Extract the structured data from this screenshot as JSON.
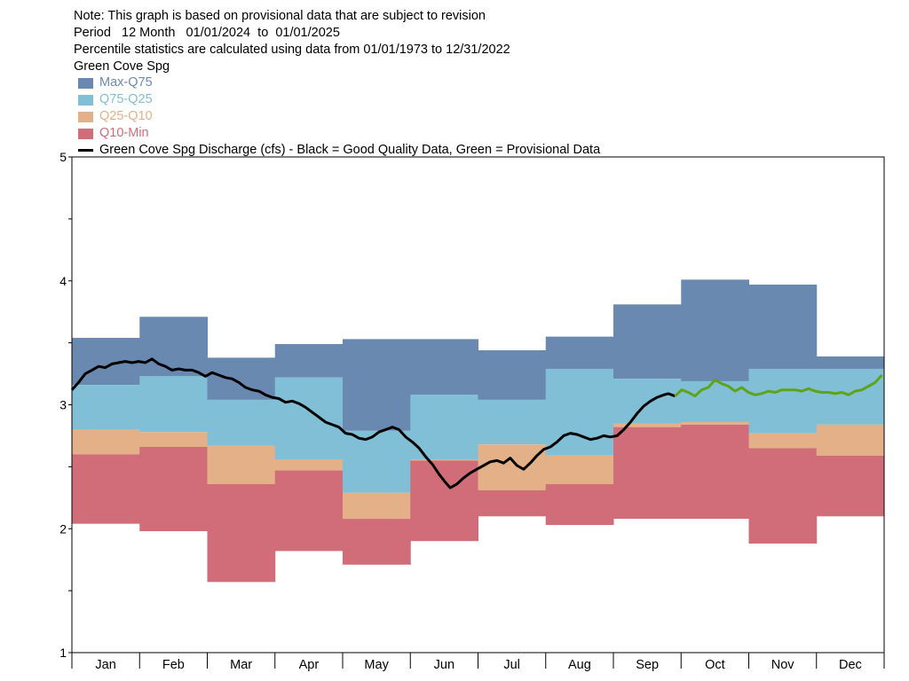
{
  "header": {
    "note": "Note: This graph is based on provisional data that are subject to revision",
    "period": "Period   12 Month   01/01/2024  to  01/01/2025",
    "percentile_note": "Percentile statistics are calculated using data from 01/01/1973 to 12/31/2022",
    "station": "Green Cove Spg"
  },
  "legend": [
    {
      "label": "Max-Q75",
      "color": "#6a89b0",
      "text_color": "#6a89b0"
    },
    {
      "label": "Q75-Q25",
      "color": "#80bfd6",
      "text_color": "#80bfd6"
    },
    {
      "label": "Q25-Q10",
      "color": "#e3b088",
      "text_color": "#e3b088"
    },
    {
      "label": "Q10-Min",
      "color": "#d06d78",
      "text_color": "#d06d78"
    }
  ],
  "legend_line_label": "Green Cove Spg Discharge (cfs) - Black = Good Quality Data, Green = Provisional Data",
  "chart_data": {
    "type": "area",
    "y_ticks": [
      "1",
      "2",
      "3",
      "4",
      "5"
    ],
    "ylim": [
      1,
      5
    ],
    "months": [
      "Jan",
      "Feb",
      "Mar",
      "Apr",
      "May",
      "Jun",
      "Jul",
      "Aug",
      "Sep",
      "Oct",
      "Nov",
      "Dec"
    ],
    "percentile_bands": {
      "max": [
        3.54,
        3.71,
        3.38,
        3.49,
        3.53,
        3.53,
        3.44,
        3.55,
        3.81,
        4.01,
        3.97,
        3.39
      ],
      "q75": [
        3.16,
        3.23,
        3.04,
        3.22,
        2.79,
        3.08,
        3.04,
        3.29,
        3.21,
        3.19,
        3.29,
        3.29
      ],
      "q25": [
        2.8,
        2.78,
        2.67,
        2.56,
        2.29,
        2.56,
        2.68,
        2.59,
        2.85,
        2.86,
        2.77,
        2.84
      ],
      "q10": [
        2.6,
        2.66,
        2.36,
        2.47,
        2.08,
        2.55,
        2.31,
        2.36,
        2.82,
        2.84,
        2.65,
        2.59
      ],
      "min": [
        2.04,
        1.98,
        1.57,
        1.82,
        1.71,
        1.9,
        2.1,
        2.03,
        2.08,
        2.08,
        1.88,
        2.1
      ]
    },
    "band_colors": {
      "max_q75": "#6a89b0",
      "q75_q25": "#80bfd6",
      "q25_q10": "#e3b088",
      "q10_min": "#d06d78"
    },
    "series": [
      {
        "color": "#000000",
        "points": [
          [
            0,
            3.12
          ],
          [
            3,
            3.18
          ],
          [
            6,
            3.25
          ],
          [
            9,
            3.28
          ],
          [
            12,
            3.31
          ],
          [
            15,
            3.3
          ],
          [
            18,
            3.33
          ],
          [
            21,
            3.34
          ],
          [
            24,
            3.35
          ],
          [
            27,
            3.34
          ],
          [
            30,
            3.35
          ],
          [
            33,
            3.34
          ],
          [
            36,
            3.37
          ],
          [
            39,
            3.33
          ],
          [
            42,
            3.31
          ],
          [
            45,
            3.28
          ],
          [
            48,
            3.29
          ],
          [
            51,
            3.28
          ],
          [
            54,
            3.28
          ],
          [
            57,
            3.26
          ],
          [
            60,
            3.23
          ],
          [
            63,
            3.26
          ],
          [
            66,
            3.24
          ],
          [
            69,
            3.22
          ],
          [
            72,
            3.21
          ],
          [
            75,
            3.18
          ],
          [
            78,
            3.14
          ],
          [
            81,
            3.12
          ],
          [
            84,
            3.11
          ],
          [
            87,
            3.08
          ],
          [
            90,
            3.06
          ],
          [
            93,
            3.05
          ],
          [
            96,
            3.02
          ],
          [
            99,
            3.03
          ],
          [
            102,
            3.01
          ],
          [
            105,
            2.98
          ],
          [
            108,
            2.94
          ],
          [
            111,
            2.9
          ],
          [
            114,
            2.86
          ],
          [
            117,
            2.84
          ],
          [
            120,
            2.82
          ],
          [
            123,
            2.77
          ],
          [
            126,
            2.76
          ],
          [
            129,
            2.73
          ],
          [
            132,
            2.72
          ],
          [
            135,
            2.74
          ],
          [
            138,
            2.78
          ],
          [
            141,
            2.8
          ],
          [
            144,
            2.82
          ],
          [
            147,
            2.8
          ],
          [
            150,
            2.74
          ],
          [
            153,
            2.7
          ],
          [
            156,
            2.65
          ],
          [
            159,
            2.58
          ],
          [
            162,
            2.52
          ],
          [
            165,
            2.44
          ],
          [
            168,
            2.37
          ],
          [
            170,
            2.33
          ],
          [
            173,
            2.36
          ],
          [
            176,
            2.41
          ],
          [
            179,
            2.45
          ],
          [
            182,
            2.48
          ],
          [
            185,
            2.51
          ],
          [
            188,
            2.54
          ],
          [
            191,
            2.55
          ],
          [
            194,
            2.53
          ],
          [
            197,
            2.57
          ],
          [
            200,
            2.51
          ],
          [
            203,
            2.48
          ],
          [
            206,
            2.53
          ],
          [
            209,
            2.59
          ],
          [
            212,
            2.64
          ],
          [
            215,
            2.66
          ],
          [
            218,
            2.7
          ],
          [
            221,
            2.75
          ],
          [
            224,
            2.77
          ],
          [
            227,
            2.76
          ],
          [
            230,
            2.74
          ],
          [
            233,
            2.72
          ],
          [
            236,
            2.73
          ],
          [
            239,
            2.75
          ],
          [
            242,
            2.74
          ],
          [
            245,
            2.75
          ],
          [
            248,
            2.8
          ],
          [
            251,
            2.86
          ],
          [
            254,
            2.93
          ],
          [
            257,
            2.99
          ],
          [
            260,
            3.03
          ],
          [
            263,
            3.06
          ],
          [
            266,
            3.08
          ],
          [
            268,
            3.09
          ],
          [
            271,
            3.07
          ]
        ]
      },
      {
        "color": "#5fa318",
        "points": [
          [
            271,
            3.07
          ],
          [
            274,
            3.12
          ],
          [
            277,
            3.1
          ],
          [
            280,
            3.07
          ],
          [
            283,
            3.12
          ],
          [
            286,
            3.14
          ],
          [
            289,
            3.2
          ],
          [
            292,
            3.17
          ],
          [
            295,
            3.15
          ],
          [
            298,
            3.11
          ],
          [
            301,
            3.14
          ],
          [
            304,
            3.1
          ],
          [
            307,
            3.08
          ],
          [
            310,
            3.09
          ],
          [
            313,
            3.11
          ],
          [
            316,
            3.1
          ],
          [
            319,
            3.12
          ],
          [
            322,
            3.12
          ],
          [
            325,
            3.12
          ],
          [
            328,
            3.11
          ],
          [
            331,
            3.13
          ],
          [
            334,
            3.11
          ],
          [
            337,
            3.1
          ],
          [
            340,
            3.1
          ],
          [
            343,
            3.09
          ],
          [
            346,
            3.1
          ],
          [
            349,
            3.08
          ],
          [
            352,
            3.11
          ],
          [
            355,
            3.12
          ],
          [
            358,
            3.15
          ],
          [
            361,
            3.18
          ],
          [
            364,
            3.24
          ]
        ]
      }
    ]
  }
}
